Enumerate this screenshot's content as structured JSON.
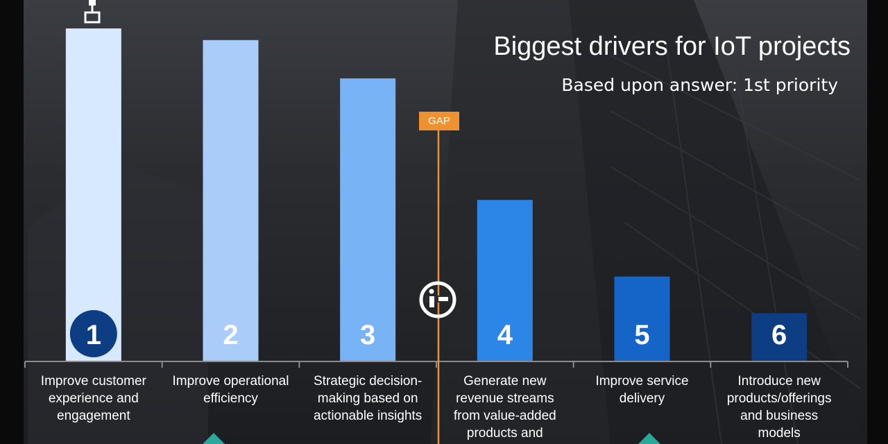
{
  "header": {
    "title": "Biggest drivers for IoT projects",
    "subtitle": "Based upon answer: 1st priority"
  },
  "gap_marker": {
    "label": "GAP",
    "after_rank": 3,
    "color": "#f0912f"
  },
  "colors": {
    "bars": [
      "#d7e9ff",
      "#a9cdf8",
      "#78b3f5",
      "#2b86e8",
      "#1565c8",
      "#0d3d82"
    ],
    "rank_text_1": "#ffffff",
    "rank_badge_1": "#0d3d82",
    "background": "#2a2c30"
  },
  "icons": {
    "logo": "i-scope-logo-icon",
    "top": "tower-icon",
    "bottom": "diamond-icon"
  },
  "chart_data": {
    "type": "bar",
    "title": "Biggest drivers for IoT projects",
    "subtitle": "Based upon answer: 1st priority",
    "categories": [
      "Improve customer experience and engagement",
      "Improve operational efficiency",
      "Strategic decision-making based on actionable insights",
      "Generate new revenue streams from value-added products and services",
      "Improve service delivery",
      "Introduce new products/offerings and business models"
    ],
    "category_lines": [
      [
        "Improve customer",
        "experience and",
        "engagement"
      ],
      [
        "Improve operational",
        "efficiency"
      ],
      [
        "Strategic decision-",
        "making based on",
        "actionable insights"
      ],
      [
        "Generate new",
        "revenue streams",
        "from value-added",
        "products and"
      ],
      [
        "Improve service",
        "delivery"
      ],
      [
        "Introduce new",
        "products/offerings",
        "and business",
        "models"
      ]
    ],
    "ranks": [
      "1",
      "2",
      "3",
      "4",
      "5",
      "6"
    ],
    "values": [
      100,
      96.5,
      85,
      48.5,
      25.5,
      14.5
    ],
    "ylim": [
      0,
      100
    ],
    "xlabel": "",
    "ylabel": "",
    "grid": false,
    "legend": "none"
  }
}
